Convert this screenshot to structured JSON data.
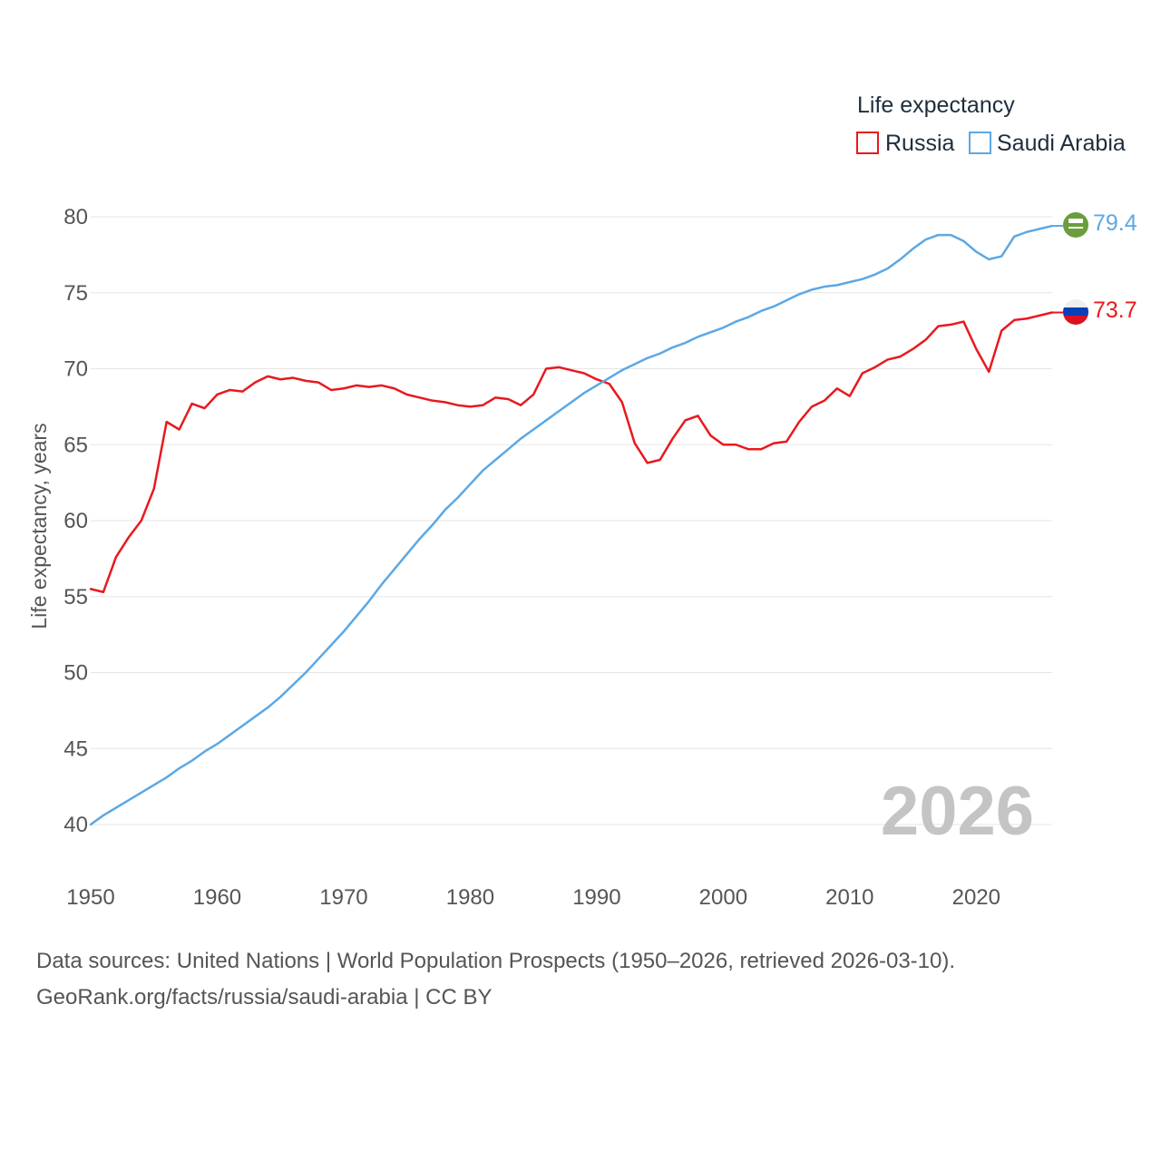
{
  "chart_data": {
    "type": "line",
    "title": "",
    "xlabel": "",
    "ylabel": "Life expectancy, years",
    "xlim": [
      1950,
      2026
    ],
    "ylim": [
      40,
      80
    ],
    "x_ticks": [
      "1950",
      "1960",
      "1970",
      "1980",
      "1990",
      "2000",
      "2010",
      "2020"
    ],
    "y_ticks": [
      "40",
      "45",
      "50",
      "55",
      "60",
      "65",
      "70",
      "75",
      "80"
    ],
    "legend": {
      "title": "Life expectancy",
      "position": "top-right"
    },
    "year_watermark": "2026",
    "x": [
      1950,
      1951,
      1952,
      1953,
      1954,
      1955,
      1956,
      1957,
      1958,
      1959,
      1960,
      1961,
      1962,
      1963,
      1964,
      1965,
      1966,
      1967,
      1968,
      1969,
      1970,
      1971,
      1972,
      1973,
      1974,
      1975,
      1976,
      1977,
      1978,
      1979,
      1980,
      1981,
      1982,
      1983,
      1984,
      1985,
      1986,
      1987,
      1988,
      1989,
      1990,
      1991,
      1992,
      1993,
      1994,
      1995,
      1996,
      1997,
      1998,
      1999,
      2000,
      2001,
      2002,
      2003,
      2004,
      2005,
      2006,
      2007,
      2008,
      2009,
      2010,
      2011,
      2012,
      2013,
      2014,
      2015,
      2016,
      2017,
      2018,
      2019,
      2020,
      2021,
      2022,
      2023,
      2024,
      2025,
      2026
    ],
    "series": [
      {
        "name": "Russia",
        "color": "#e8191e",
        "end_label": "73.7",
        "flag_icon": "russia-flag-icon",
        "values": [
          55.5,
          55.3,
          57.6,
          58.9,
          60.0,
          62.1,
          66.5,
          66.0,
          67.7,
          67.4,
          68.3,
          68.6,
          68.5,
          69.1,
          69.5,
          69.3,
          69.4,
          69.2,
          69.1,
          68.6,
          68.7,
          68.9,
          68.8,
          68.9,
          68.7,
          68.3,
          68.1,
          67.9,
          67.8,
          67.6,
          67.5,
          67.6,
          68.1,
          68.0,
          67.6,
          68.3,
          70.0,
          70.1,
          69.9,
          69.7,
          69.3,
          69.0,
          67.8,
          65.1,
          63.8,
          64.0,
          65.4,
          66.6,
          66.9,
          65.6,
          65.0,
          65.0,
          64.7,
          64.7,
          65.1,
          65.2,
          66.5,
          67.5,
          67.9,
          68.7,
          68.2,
          69.7,
          70.1,
          70.6,
          70.8,
          71.3,
          71.9,
          72.8,
          72.9,
          73.1,
          71.3,
          69.8,
          72.5,
          73.2,
          73.3,
          73.5,
          73.7
        ]
      },
      {
        "name": "Saudi Arabia",
        "color": "#5ba8e5",
        "end_label": "79.4",
        "flag_icon": "saudi-arabia-flag-icon",
        "values": [
          40.0,
          40.6,
          41.1,
          41.6,
          42.1,
          42.6,
          43.1,
          43.7,
          44.2,
          44.8,
          45.3,
          45.9,
          46.5,
          47.1,
          47.7,
          48.4,
          49.2,
          50.0,
          50.9,
          51.8,
          52.7,
          53.7,
          54.7,
          55.8,
          56.8,
          57.8,
          58.8,
          59.7,
          60.7,
          61.5,
          62.4,
          63.3,
          64.0,
          64.7,
          65.4,
          66.0,
          66.6,
          67.2,
          67.8,
          68.4,
          68.9,
          69.4,
          69.9,
          70.3,
          70.7,
          71.0,
          71.4,
          71.7,
          72.1,
          72.4,
          72.7,
          73.1,
          73.4,
          73.8,
          74.1,
          74.5,
          74.9,
          75.2,
          75.4,
          75.5,
          75.7,
          75.9,
          76.2,
          76.6,
          77.2,
          77.9,
          78.5,
          78.8,
          78.8,
          78.4,
          77.7,
          77.2,
          77.4,
          78.7,
          79.0,
          79.2,
          79.4
        ]
      }
    ]
  },
  "footer": {
    "line1": "Data sources: United Nations | World Population Prospects (1950–2026, retrieved 2026-03-10).",
    "line2": "GeoRank.org/facts/russia/saudi-arabia | CC BY"
  }
}
